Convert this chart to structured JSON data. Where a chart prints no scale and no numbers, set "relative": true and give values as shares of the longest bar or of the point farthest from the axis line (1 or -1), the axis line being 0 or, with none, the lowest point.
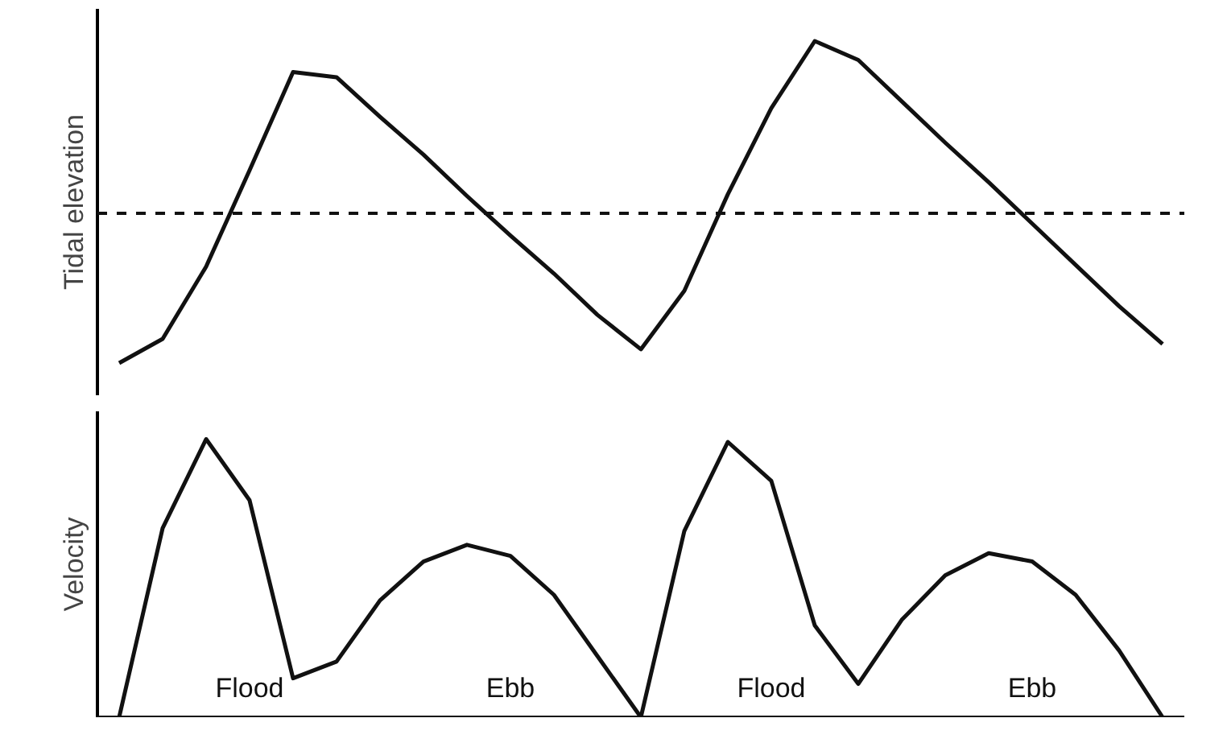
{
  "chart_data": [
    {
      "type": "line",
      "relative": true,
      "ylabel": "Tidal elevation",
      "categories": [
        null,
        null,
        null,
        null,
        null,
        null,
        null,
        null,
        null,
        null,
        null,
        null,
        null,
        null,
        null,
        null,
        null,
        null,
        null,
        null,
        null,
        null,
        null,
        null,
        null
      ],
      "series": [
        {
          "color": "#111111",
          "values": [
            -0.87,
            -0.73,
            -0.31,
            0.25,
            0.82,
            0.79,
            0.56,
            0.34,
            0.1,
            -0.13,
            -0.35,
            -0.59,
            -0.79,
            -0.45,
            0.11,
            0.61,
            1.0,
            0.89,
            0.65,
            0.41,
            0.18,
            -0.06,
            -0.3,
            -0.54,
            -0.76
          ]
        }
      ],
      "ref_lines": [
        {
          "axis": "y",
          "value": 0,
          "color": "#111111",
          "line_style": "dashed"
        }
      ],
      "line_style": "solid",
      "marker": "none"
    },
    {
      "type": "line",
      "relative": true,
      "ylabel": "Velocity",
      "categories": [
        null,
        null,
        null,
        null,
        null,
        null,
        null,
        null,
        null,
        null,
        null,
        null,
        null,
        null,
        null,
        null,
        null,
        null,
        null,
        null,
        null,
        null,
        null,
        null,
        null
      ],
      "series": [
        {
          "color": "#111111",
          "values": [
            0,
            0.68,
            1.0,
            0.78,
            0.14,
            0.2,
            0.42,
            0.56,
            0.62,
            0.58,
            0.44,
            0.22,
            0,
            0.67,
            0.99,
            0.85,
            0.33,
            0.12,
            0.35,
            0.51,
            0.59,
            0.56,
            0.44,
            0.24,
            0
          ]
        }
      ],
      "annotations": [
        "Flood",
        "Ebb",
        "Flood",
        "Ebb"
      ],
      "line_style": "solid",
      "marker": "none"
    }
  ]
}
